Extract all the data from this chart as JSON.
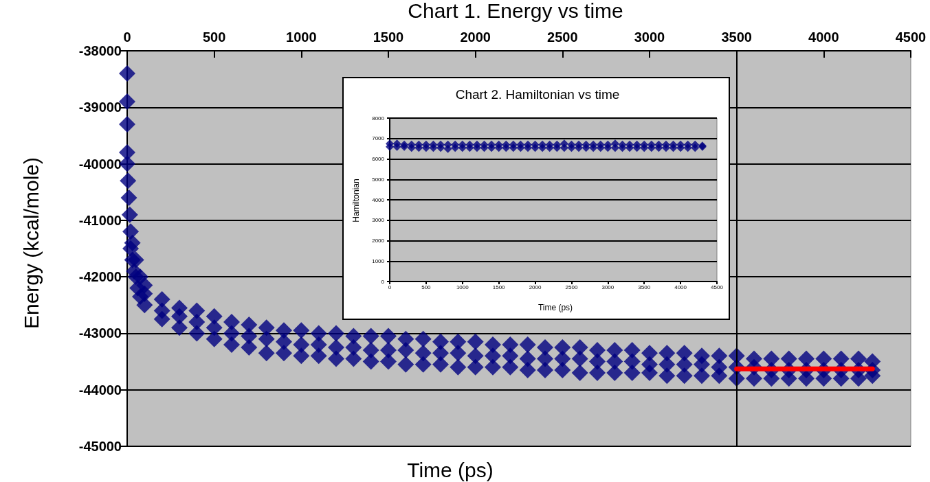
{
  "chart_data": [
    {
      "type": "scatter",
      "title": "Chart 1. Energy vs time",
      "xlabel": "Time (ps)",
      "ylabel": "Energy (kcal/mole)",
      "xlim": [
        0,
        4500
      ],
      "ylim": [
        -45000,
        -38000
      ],
      "xticks": [
        0,
        500,
        1000,
        1500,
        2000,
        2500,
        3000,
        3500,
        4000,
        4500
      ],
      "yticks": [
        -45000,
        -44000,
        -43000,
        -42000,
        -41000,
        -40000,
        -39000,
        -38000
      ],
      "grid": "y",
      "marker": "diamond",
      "ref_lines": [
        {
          "axis": "x",
          "value": 3500,
          "color": "#000000"
        }
      ],
      "series": [
        {
          "type": "scatter",
          "color": "#000080",
          "x": [
            0,
            0,
            0,
            0,
            0,
            5,
            10,
            15,
            20,
            20,
            30,
            30,
            40,
            50,
            50,
            60,
            75,
            75,
            100,
            100,
            100,
            200,
            200,
            200,
            300,
            300,
            300,
            400,
            400,
            400,
            500,
            500,
            500,
            600,
            600,
            600,
            700,
            700,
            700,
            800,
            800,
            800,
            900,
            900,
            900,
            1000,
            1000,
            1000,
            1100,
            1100,
            1100,
            1200,
            1200,
            1200,
            1300,
            1300,
            1300,
            1400,
            1400,
            1400,
            1500,
            1500,
            1500,
            1600,
            1600,
            1600,
            1700,
            1700,
            1700,
            1800,
            1800,
            1800,
            1900,
            1900,
            1900,
            2000,
            2000,
            2000,
            2100,
            2100,
            2100,
            2200,
            2200,
            2200,
            2300,
            2300,
            2300,
            2400,
            2400,
            2400,
            2500,
            2500,
            2500,
            2600,
            2600,
            2600,
            2700,
            2700,
            2700,
            2800,
            2800,
            2800,
            2900,
            2900,
            2900,
            3000,
            3000,
            3000,
            3100,
            3100,
            3100,
            3200,
            3200,
            3200,
            3300,
            3300,
            3300,
            3400,
            3400,
            3400,
            3500,
            3500,
            3500,
            3600,
            3600,
            3600,
            3700,
            3700,
            3700,
            3800,
            3800,
            3800,
            3900,
            3900,
            3900,
            4000,
            4000,
            4000,
            4100,
            4100,
            4100,
            4200,
            4200,
            4200,
            4280,
            4280,
            4280
          ],
          "values": [
            -38400,
            -38900,
            -39300,
            -39800,
            -40000,
            -40300,
            -40600,
            -40900,
            -41200,
            -41500,
            -41400,
            -41700,
            -41900,
            -41700,
            -42000,
            -42200,
            -42000,
            -42350,
            -42150,
            -42300,
            -42500,
            -42400,
            -42600,
            -42750,
            -42550,
            -42700,
            -42900,
            -42600,
            -42800,
            -43000,
            -42700,
            -42900,
            -43100,
            -42800,
            -43000,
            -43200,
            -42850,
            -43050,
            -43250,
            -42900,
            -43100,
            -43350,
            -42950,
            -43150,
            -43350,
            -42950,
            -43200,
            -43400,
            -43000,
            -43200,
            -43400,
            -43000,
            -43250,
            -43450,
            -43050,
            -43250,
            -43450,
            -43050,
            -43300,
            -43500,
            -43050,
            -43300,
            -43500,
            -43100,
            -43300,
            -43550,
            -43100,
            -43350,
            -43550,
            -43150,
            -43350,
            -43550,
            -43150,
            -43350,
            -43600,
            -43150,
            -43400,
            -43600,
            -43200,
            -43400,
            -43600,
            -43200,
            -43400,
            -43600,
            -43200,
            -43450,
            -43650,
            -43250,
            -43450,
            -43650,
            -43250,
            -43450,
            -43650,
            -43250,
            -43450,
            -43700,
            -43300,
            -43500,
            -43700,
            -43300,
            -43500,
            -43700,
            -43300,
            -43500,
            -43700,
            -43350,
            -43550,
            -43700,
            -43350,
            -43550,
            -43750,
            -43350,
            -43550,
            -43750,
            -43400,
            -43550,
            -43750,
            -43400,
            -43600,
            -43750,
            -43400,
            -43600,
            -43800,
            -43450,
            -43600,
            -43800,
            -43450,
            -43650,
            -43800,
            -43450,
            -43650,
            -43800,
            -43450,
            -43650,
            -43800,
            -43450,
            -43650,
            -43800,
            -43450,
            -43650,
            -43800,
            -43450,
            -43650,
            -43800,
            -43500,
            -43650,
            -43750
          ]
        },
        {
          "type": "line",
          "color": "#ff0000",
          "marker": "none",
          "x": [
            3500,
            4280
          ],
          "values": [
            -43630,
            -43630
          ]
        }
      ]
    },
    {
      "type": "scatter",
      "title": "Chart 2. Hamiltonian vs time",
      "xlabel": "Time (ps)",
      "ylabel": "Hamiltonian",
      "xlim": [
        0,
        4500
      ],
      "ylim": [
        0,
        8000
      ],
      "xticks": [
        0,
        500,
        1000,
        1500,
        2000,
        2500,
        3000,
        3500,
        4000,
        4500
      ],
      "yticks": [
        0,
        1000,
        2000,
        3000,
        4000,
        5000,
        6000,
        7000,
        8000
      ],
      "grid": "y",
      "marker": "diamond",
      "series": [
        {
          "type": "scatter",
          "color": "#000080",
          "x": [
            0,
            0,
            100,
            100,
            200,
            200,
            300,
            300,
            400,
            400,
            500,
            500,
            600,
            600,
            700,
            700,
            800,
            800,
            900,
            900,
            1000,
            1000,
            1100,
            1100,
            1200,
            1200,
            1300,
            1300,
            1400,
            1400,
            1500,
            1500,
            1600,
            1600,
            1700,
            1700,
            1800,
            1800,
            1900,
            1900,
            2000,
            2000,
            2100,
            2100,
            2200,
            2200,
            2300,
            2300,
            2400,
            2400,
            2500,
            2500,
            2600,
            2600,
            2700,
            2700,
            2800,
            2800,
            2900,
            2900,
            3000,
            3000,
            3100,
            3100,
            3200,
            3200,
            3300,
            3300,
            3400,
            3400,
            3500,
            3500,
            3600,
            3600,
            3700,
            3700,
            3800,
            3800,
            3900,
            3900,
            4000,
            4000,
            4100,
            4100,
            4200,
            4200,
            4300,
            4300
          ],
          "values": [
            6750,
            6600,
            6750,
            6600,
            6700,
            6600,
            6700,
            6550,
            6700,
            6550,
            6700,
            6550,
            6700,
            6550,
            6700,
            6550,
            6700,
            6500,
            6700,
            6550,
            6700,
            6550,
            6700,
            6550,
            6700,
            6550,
            6700,
            6550,
            6700,
            6550,
            6700,
            6550,
            6700,
            6550,
            6700,
            6550,
            6700,
            6550,
            6700,
            6550,
            6700,
            6550,
            6700,
            6550,
            6700,
            6550,
            6700,
            6550,
            6750,
            6550,
            6700,
            6550,
            6700,
            6550,
            6700,
            6550,
            6700,
            6550,
            6700,
            6550,
            6700,
            6550,
            6750,
            6550,
            6700,
            6550,
            6700,
            6550,
            6700,
            6550,
            6700,
            6550,
            6700,
            6550,
            6700,
            6550,
            6700,
            6550,
            6700,
            6550,
            6700,
            6550,
            6700,
            6550,
            6700,
            6550,
            6650,
            6600
          ]
        }
      ]
    }
  ]
}
